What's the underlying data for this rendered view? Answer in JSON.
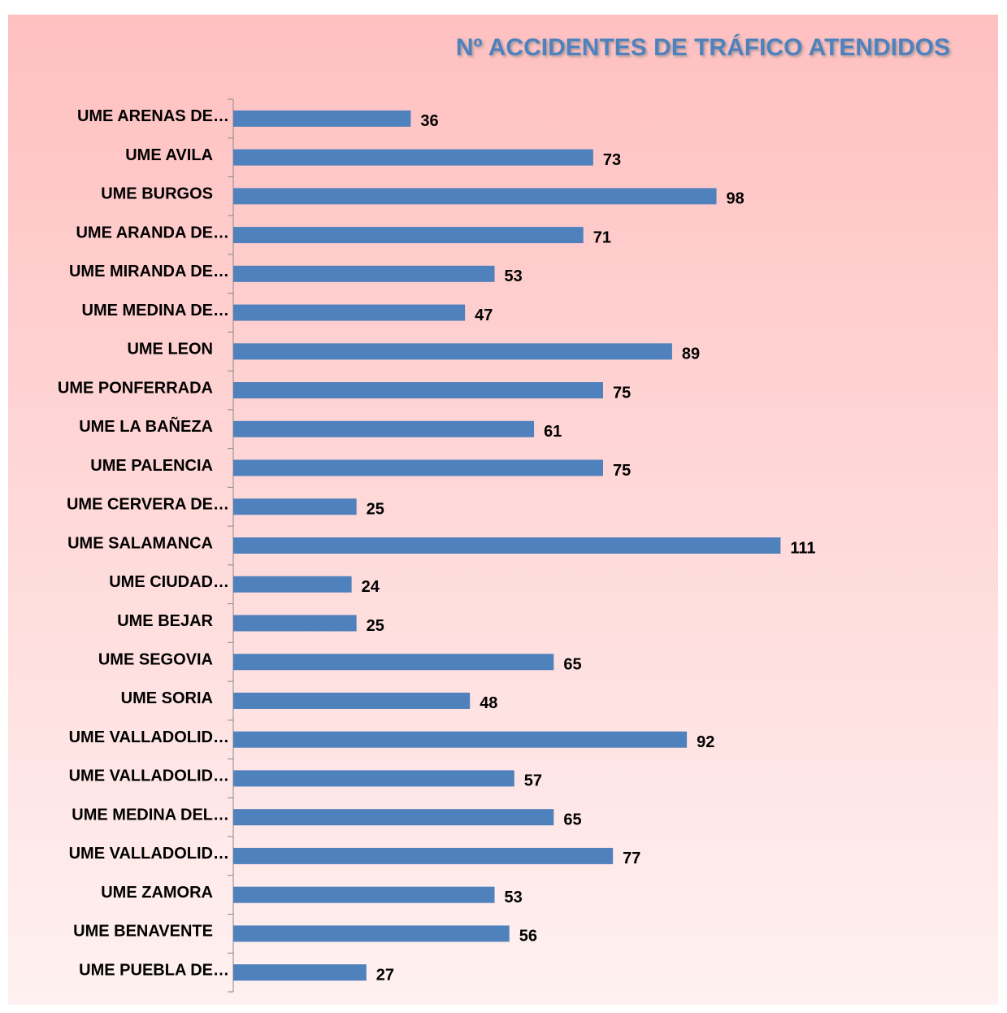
{
  "chart_data": {
    "type": "bar",
    "orientation": "horizontal",
    "title": "Nº ACCIDENTES DE TRÁFICO ATENDIDOS",
    "categories": [
      "UME ARENAS DE…",
      "UME AVILA",
      "UME BURGOS",
      "UME ARANDA DE…",
      "UME MIRANDA DE…",
      "UME MEDINA DE…",
      "UME LEON",
      "UME PONFERRADA",
      "UME LA BAÑEZA",
      "UME PALENCIA",
      "UME CERVERA DE…",
      "UME SALAMANCA",
      "UME CIUDAD…",
      "UME BEJAR",
      "UME SEGOVIA",
      "UME SORIA",
      "UME VALLADOLID…",
      "UME VALLADOLID…",
      "UME MEDINA DEL…",
      "UME VALLADOLID…",
      "UME ZAMORA",
      "UME BENAVENTE",
      "UME PUEBLA DE…"
    ],
    "values": [
      36,
      73,
      98,
      71,
      53,
      47,
      89,
      75,
      61,
      75,
      25,
      111,
      24,
      25,
      65,
      48,
      92,
      57,
      65,
      77,
      53,
      56,
      27
    ],
    "color": "#4f81bd",
    "xlim": [
      0,
      150
    ]
  }
}
